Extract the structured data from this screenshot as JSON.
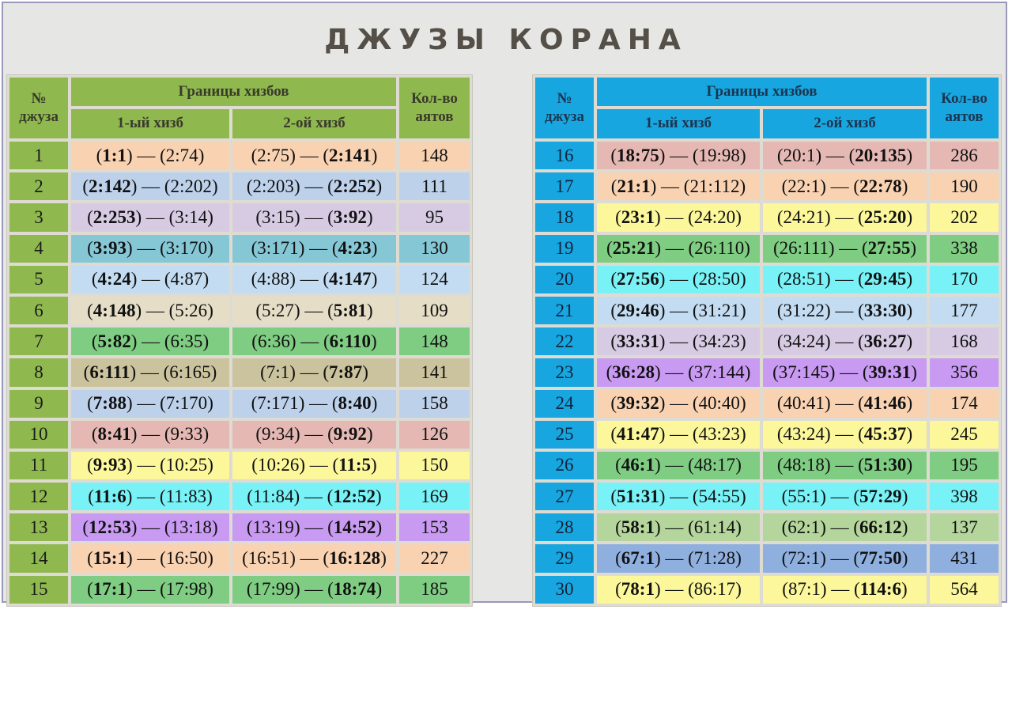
{
  "title": "ДЖУЗЫ КОРАНА",
  "headers": {
    "num": [
      "№",
      "джуза"
    ],
    "bounds": "Границы хизбов",
    "hizb1": "1-ый хизб",
    "hizb2": "2-ой хизб",
    "count": [
      "Кол-во",
      "аятов"
    ]
  },
  "colors": {
    "peach": "#f9d2b2",
    "blue": "#bdd1eb",
    "lavender": "#d7cbe4",
    "teal": "#86c7d6",
    "lightblue": "#c3dcf2",
    "beige": "#e5ddc6",
    "green": "#7fcd82",
    "khaki": "#cbc39d",
    "rose": "#e5b8b4",
    "yellow": "#fbf79a",
    "cyan": "#78f2f6",
    "purple": "#c89af2",
    "sage": "#b4d59b",
    "medblue": "#8fb0df"
  },
  "left_rows": [
    {
      "juz": "1",
      "h1a": "1:1",
      "h1b": "2:74",
      "h2a": "2:75",
      "h2b": "2:141",
      "ayats": "148",
      "color": "peach"
    },
    {
      "juz": "2",
      "h1a": "2:142",
      "h1b": "2:202",
      "h2a": "2:203",
      "h2b": "2:252",
      "ayats": "111",
      "color": "blue"
    },
    {
      "juz": "3",
      "h1a": "2:253",
      "h1b": "3:14",
      "h2a": "3:15",
      "h2b": "3:92",
      "ayats": "95",
      "color": "lavender"
    },
    {
      "juz": "4",
      "h1a": "3:93",
      "h1b": "3:170",
      "h2a": "3:171",
      "h2b": "4:23",
      "ayats": "130",
      "color": "teal"
    },
    {
      "juz": "5",
      "h1a": "4:24",
      "h1b": "4:87",
      "h2a": "4:88",
      "h2b": "4:147",
      "ayats": "124",
      "color": "lightblue"
    },
    {
      "juz": "6",
      "h1a": "4:148",
      "h1b": "5:26",
      "h2a": "5:27",
      "h2b": "5:81",
      "ayats": "109",
      "color": "beige"
    },
    {
      "juz": "7",
      "h1a": "5:82",
      "h1b": "6:35",
      "h2a": "6:36",
      "h2b": "6:110",
      "ayats": "148",
      "color": "green"
    },
    {
      "juz": "8",
      "h1a": "6:111",
      "h1b": "6:165",
      "h2a": "7:1",
      "h2b": "7:87",
      "ayats": "141",
      "color": "khaki"
    },
    {
      "juz": "9",
      "h1a": "7:88",
      "h1b": "7:170",
      "h2a": "7:171",
      "h2b": "8:40",
      "ayats": "158",
      "color": "blue"
    },
    {
      "juz": "10",
      "h1a": "8:41",
      "h1b": "9:33",
      "h2a": "9:34",
      "h2b": "9:92",
      "ayats": "126",
      "color": "rose"
    },
    {
      "juz": "11",
      "h1a": "9:93",
      "h1b": "10:25",
      "h2a": "10:26",
      "h2b": "11:5",
      "ayats": "150",
      "color": "yellow"
    },
    {
      "juz": "12",
      "h1a": "11:6",
      "h1b": "11:83",
      "h2a": "11:84",
      "h2b": "12:52",
      "ayats": "169",
      "color": "cyan"
    },
    {
      "juz": "13",
      "h1a": "12:53",
      "h1b": "13:18",
      "h2a": "13:19",
      "h2b": "14:52",
      "ayats": "153",
      "color": "purple"
    },
    {
      "juz": "14",
      "h1a": "15:1",
      "h1b": "16:50",
      "h2a": "16:51",
      "h2b": "16:128",
      "ayats": "227",
      "color": "peach"
    },
    {
      "juz": "15",
      "h1a": "17:1",
      "h1b": "17:98",
      "h2a": "17:99",
      "h2b": "18:74",
      "ayats": "185",
      "color": "green"
    }
  ],
  "right_rows": [
    {
      "juz": "16",
      "h1a": "18:75",
      "h1b": "19:98",
      "h2a": "20:1",
      "h2b": "20:135",
      "ayats": "286",
      "color": "rose"
    },
    {
      "juz": "17",
      "h1a": "21:1",
      "h1b": "21:112",
      "h2a": "22:1",
      "h2b": "22:78",
      "ayats": "190",
      "color": "peach"
    },
    {
      "juz": "18",
      "h1a": "23:1",
      "h1b": "24:20",
      "h2a": "24:21",
      "h2b": "25:20",
      "ayats": "202",
      "color": "yellow"
    },
    {
      "juz": "19",
      "h1a": "25:21",
      "h1b": "26:110",
      "h2a": "26:111",
      "h2b": "27:55",
      "ayats": "338",
      "color": "green"
    },
    {
      "juz": "20",
      "h1a": "27:56",
      "h1b": "28:50",
      "h2a": "28:51",
      "h2b": "29:45",
      "ayats": "170",
      "color": "cyan"
    },
    {
      "juz": "21",
      "h1a": "29:46",
      "h1b": "31:21",
      "h2a": "31:22",
      "h2b": "33:30",
      "ayats": "177",
      "color": "lightblue"
    },
    {
      "juz": "22",
      "h1a": "33:31",
      "h1b": "34:23",
      "h2a": "34:24",
      "h2b": "36:27",
      "ayats": "168",
      "color": "lavender"
    },
    {
      "juz": "23",
      "h1a": "36:28",
      "h1b": "37:144",
      "h2a": "37:145",
      "h2b": "39:31",
      "ayats": "356",
      "color": "purple"
    },
    {
      "juz": "24",
      "h1a": "39:32",
      "h1b": "40:40",
      "h2a": "40:41",
      "h2b": "41:46",
      "ayats": "174",
      "color": "peach"
    },
    {
      "juz": "25",
      "h1a": "41:47",
      "h1b": "43:23",
      "h2a": "43:24",
      "h2b": "45:37",
      "ayats": "245",
      "color": "yellow"
    },
    {
      "juz": "26",
      "h1a": "46:1",
      "h1b": "48:17",
      "h2a": "48:18",
      "h2b": "51:30",
      "ayats": "195",
      "color": "green"
    },
    {
      "juz": "27",
      "h1a": "51:31",
      "h1b": "54:55",
      "h2a": "55:1",
      "h2b": "57:29",
      "ayats": "398",
      "color": "cyan"
    },
    {
      "juz": "28",
      "h1a": "58:1",
      "h1b": "61:14",
      "h2a": "62:1",
      "h2b": "66:12",
      "ayats": "137",
      "color": "sage"
    },
    {
      "juz": "29",
      "h1a": "67:1",
      "h1b": "71:28",
      "h2a": "72:1",
      "h2b": "77:50",
      "ayats": "431",
      "color": "medblue"
    },
    {
      "juz": "30",
      "h1a": "78:1",
      "h1b": "86:17",
      "h2a": "87:1",
      "h2b": "114:6",
      "ayats": "564",
      "color": "yellow"
    }
  ]
}
